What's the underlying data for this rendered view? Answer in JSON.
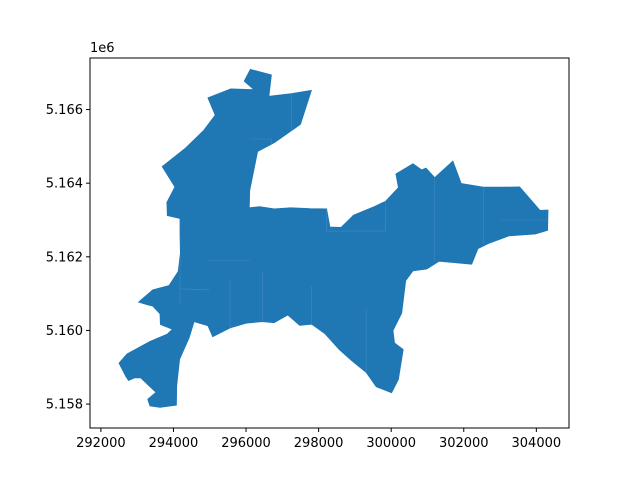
{
  "chart_data": {
    "type": "geo-polygon",
    "title": "",
    "xlabel": "",
    "ylabel": "",
    "xlim": [
      291700,
      304900
    ],
    "ylim": [
      5157350,
      5167400
    ],
    "y_offset_label": "1e6",
    "x_ticks": [
      {
        "value": 292000,
        "label": "292000"
      },
      {
        "value": 294000,
        "label": "294000"
      },
      {
        "value": 296000,
        "label": "296000"
      },
      {
        "value": 298000,
        "label": "298000"
      },
      {
        "value": 300000,
        "label": "300000"
      },
      {
        "value": 302000,
        "label": "302000"
      },
      {
        "value": 304000,
        "label": "304000"
      }
    ],
    "y_ticks": [
      {
        "value": 5158000,
        "label": "5.158"
      },
      {
        "value": 5160000,
        "label": "5.160"
      },
      {
        "value": 5162000,
        "label": "5.162"
      },
      {
        "value": 5164000,
        "label": "5.164"
      },
      {
        "value": 5166000,
        "label": "5.166"
      }
    ],
    "fill_color": "#1f77b4",
    "edge_color": "#5d9bd0",
    "grid": false,
    "region_outline": [
      [
        296120,
        5167090
      ],
      [
        296700,
        5166940
      ],
      [
        296630,
        5166360
      ],
      [
        297250,
        5166430
      ],
      [
        297800,
        5166520
      ],
      [
        297500,
        5165600
      ],
      [
        296780,
        5165100
      ],
      [
        296320,
        5164860
      ],
      [
        296100,
        5163800
      ],
      [
        296090,
        5163330
      ],
      [
        296370,
        5163360
      ],
      [
        296780,
        5163300
      ],
      [
        297230,
        5163330
      ],
      [
        297770,
        5163310
      ],
      [
        298220,
        5163300
      ],
      [
        298310,
        5162810
      ],
      [
        298620,
        5162800
      ],
      [
        298960,
        5163130
      ],
      [
        299550,
        5163370
      ],
      [
        299850,
        5163510
      ],
      [
        300200,
        5163880
      ],
      [
        300130,
        5164250
      ],
      [
        300600,
        5164530
      ],
      [
        300840,
        5164360
      ],
      [
        300960,
        5164410
      ],
      [
        301200,
        5164150
      ],
      [
        301700,
        5164600
      ],
      [
        301930,
        5163990
      ],
      [
        302540,
        5163890
      ],
      [
        303050,
        5163890
      ],
      [
        303540,
        5163900
      ],
      [
        304100,
        5163260
      ],
      [
        304320,
        5163270
      ],
      [
        304310,
        5162720
      ],
      [
        303970,
        5162620
      ],
      [
        303250,
        5162570
      ],
      [
        302670,
        5162360
      ],
      [
        302390,
        5162220
      ],
      [
        302220,
        5161800
      ],
      [
        301320,
        5161880
      ],
      [
        300980,
        5161670
      ],
      [
        300600,
        5161620
      ],
      [
        300400,
        5161350
      ],
      [
        300290,
        5160470
      ],
      [
        300050,
        5160000
      ],
      [
        300090,
        5159660
      ],
      [
        300330,
        5159480
      ],
      [
        300200,
        5158670
      ],
      [
        300010,
        5158310
      ],
      [
        299590,
        5158470
      ],
      [
        299310,
        5158860
      ],
      [
        298910,
        5159180
      ],
      [
        298570,
        5159480
      ],
      [
        298180,
        5159910
      ],
      [
        297810,
        5160170
      ],
      [
        297480,
        5160140
      ],
      [
        297150,
        5160420
      ],
      [
        296770,
        5160210
      ],
      [
        296450,
        5160240
      ],
      [
        296010,
        5160200
      ],
      [
        295560,
        5160070
      ],
      [
        295080,
        5159830
      ],
      [
        294950,
        5160130
      ],
      [
        294570,
        5160240
      ],
      [
        294430,
        5159800
      ],
      [
        294170,
        5159220
      ],
      [
        294090,
        5158500
      ],
      [
        294080,
        5157970
      ],
      [
        293630,
        5157910
      ],
      [
        293350,
        5157950
      ],
      [
        293290,
        5158130
      ],
      [
        293520,
        5158320
      ],
      [
        293300,
        5158520
      ],
      [
        293100,
        5158710
      ],
      [
        292930,
        5158710
      ],
      [
        292760,
        5158640
      ],
      [
        292690,
        5158750
      ],
      [
        292500,
        5159110
      ],
      [
        292720,
        5159360
      ],
      [
        293350,
        5159700
      ],
      [
        293830,
        5159900
      ],
      [
        293970,
        5160030
      ],
      [
        293640,
        5160160
      ],
      [
        293630,
        5160450
      ],
      [
        293430,
        5160660
      ],
      [
        293280,
        5160700
      ],
      [
        293040,
        5160770
      ],
      [
        293430,
        5161100
      ],
      [
        293880,
        5161220
      ],
      [
        294130,
        5161600
      ],
      [
        294190,
        5162100
      ],
      [
        294180,
        5162600
      ],
      [
        294180,
        5163040
      ],
      [
        293830,
        5163120
      ],
      [
        293820,
        5163480
      ],
      [
        294040,
        5163900
      ],
      [
        293690,
        5164450
      ],
      [
        294330,
        5164950
      ],
      [
        294830,
        5165430
      ],
      [
        295150,
        5165850
      ],
      [
        294950,
        5166320
      ],
      [
        295580,
        5166560
      ],
      [
        296220,
        5166540
      ],
      [
        295950,
        5166770
      ]
    ]
  }
}
